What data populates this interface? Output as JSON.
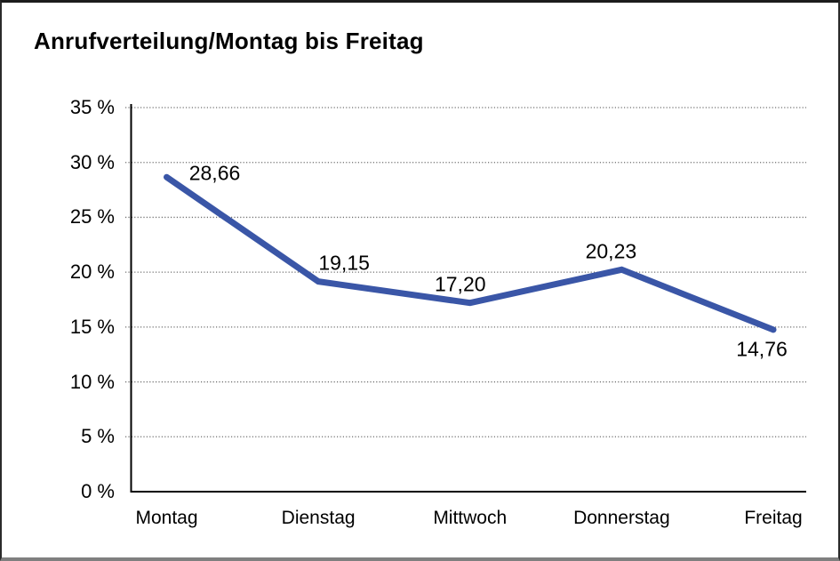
{
  "chart_data": {
    "type": "line",
    "title": "Anrufverteilung/Montag bis Freitag",
    "categories": [
      "Montag",
      "Dienstag",
      "Mittwoch",
      "Donnerstag",
      "Freitag"
    ],
    "series": [
      {
        "name": "Anrufverteilung",
        "values": [
          28.66,
          19.15,
          17.2,
          20.23,
          14.76
        ]
      }
    ],
    "point_labels": [
      "28,66",
      "19,15",
      "17,20",
      "20,23",
      "14,76"
    ],
    "xlabel": "",
    "ylabel": "",
    "ylim": [
      0,
      35
    ],
    "y_ticks": [
      {
        "value": 35,
        "label": "35 %"
      },
      {
        "value": 30,
        "label": "30 %"
      },
      {
        "value": 25,
        "label": "25 %"
      },
      {
        "value": 20,
        "label": "20 %"
      },
      {
        "value": 15,
        "label": "15 %"
      },
      {
        "value": 10,
        "label": "10 %"
      },
      {
        "value": 5,
        "label": "5 %"
      },
      {
        "value": 0,
        "label": "0 %"
      }
    ],
    "grid": "horizontal-dotted",
    "legend": "none",
    "colors": {
      "line": "#3A56A7",
      "axis": "#000000",
      "grid": "#6f6f6f",
      "text": "#000000",
      "background": "#ffffff"
    }
  }
}
